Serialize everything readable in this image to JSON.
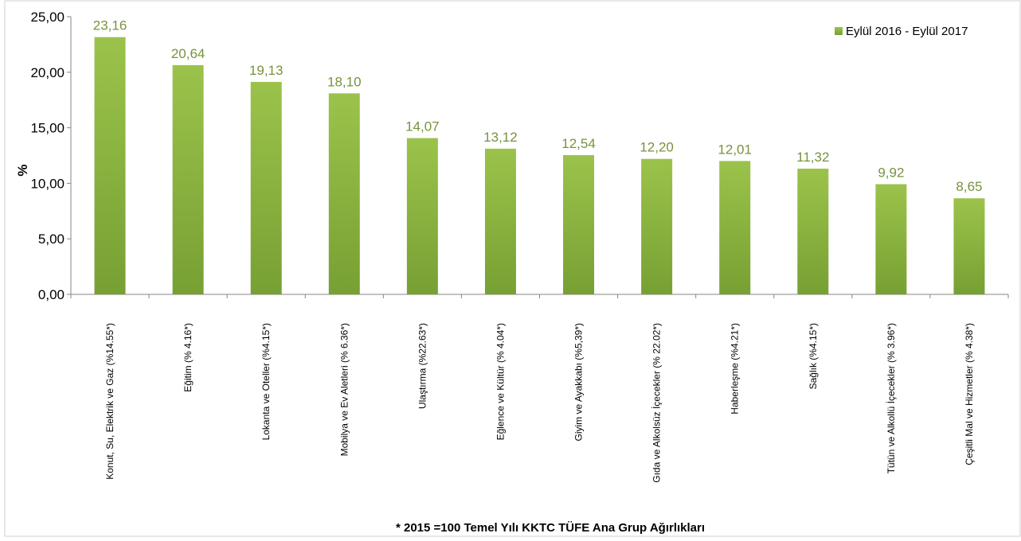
{
  "chart_data": {
    "type": "bar",
    "categories": [
      "Konut, Su, Elektrik ve Gaz (%14.55*)",
      "Eğitim (% 4.16*)",
      "Lokanta ve Oteller (%4.15*)",
      "Mobilya ve Ev Aletleri (% 6.36*)",
      "Ulaştırma (%22.63*)",
      "Eğlence ve Kültür (% 4.04*)",
      "Giyim ve Ayakkabı (%5,39*)",
      "Gıda ve Alkolsüz İçecekler (% 22.02*)",
      "Haberleşme (%4.21*)",
      "Sağlık (%4.15*)",
      "Tütün ve Alkollü İçecekler (% 3.96*)",
      "Çeşitli Mal ve Hizmetler (% 4.38*)"
    ],
    "series": [
      {
        "name": "Eylül 2016 - Eylül 2017",
        "values": [
          23.16,
          20.64,
          19.13,
          18.1,
          14.07,
          13.12,
          12.54,
          12.2,
          12.01,
          11.32,
          9.92,
          8.65
        ],
        "data_labels": [
          "23,16",
          "20,64",
          "19,13",
          "18,10",
          "14,07",
          "13,12",
          "12,54",
          "12,20",
          "12,01",
          "11,32",
          "9,92",
          "8,65"
        ]
      }
    ],
    "ylabel": "%",
    "ylim": [
      0,
      25
    ],
    "yticks": [
      0,
      5,
      10,
      15,
      20,
      25
    ],
    "ytick_labels": [
      "0,00",
      "5,00",
      "10,00",
      "15,00",
      "20,00",
      "25,00"
    ],
    "footnote": "*  2015 =100 Temel Yılı KKTC TÜFE Ana Grup Ağırlıkları",
    "legend_position": "top-right",
    "grid": false,
    "colors": {
      "bar_top": "#9bc34b",
      "bar_bottom": "#77a033",
      "data_label": "#77933c",
      "axis": "#868686"
    }
  }
}
